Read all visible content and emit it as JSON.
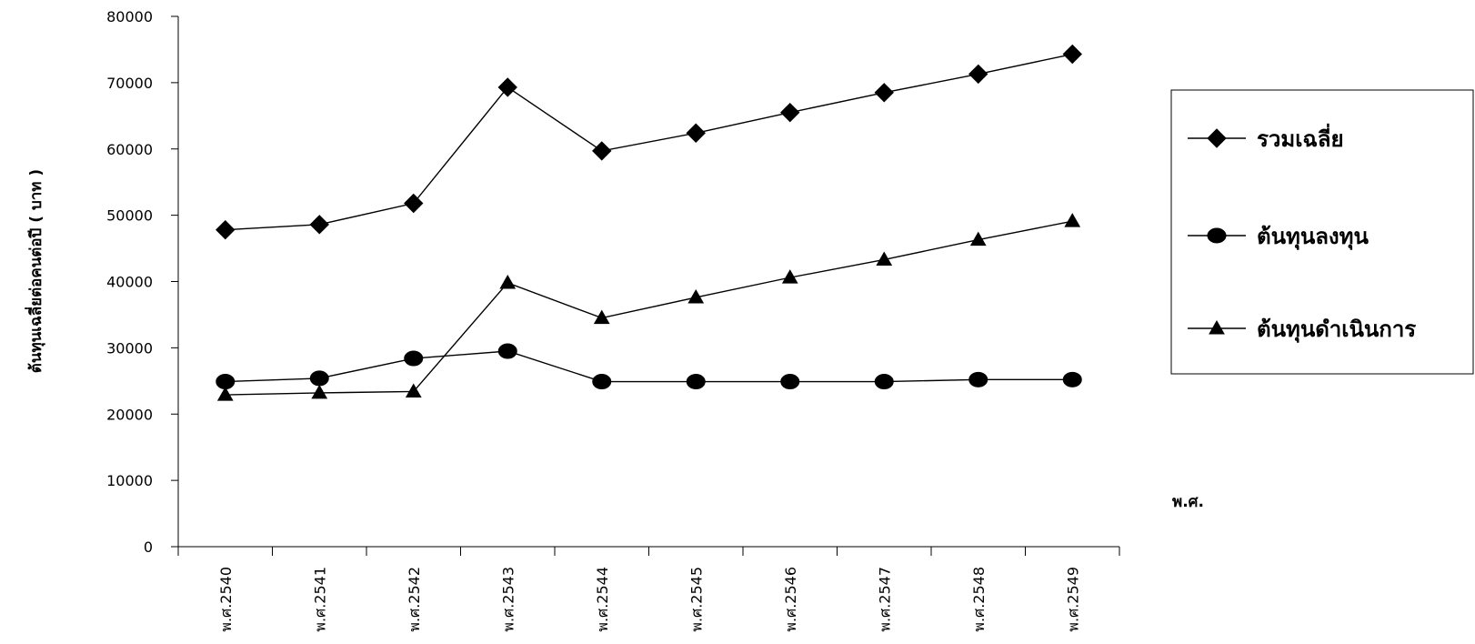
{
  "chart_data": {
    "type": "line",
    "title": "",
    "ylabel": "ต้นทุนเฉลี่ยต่อคนต่อปี ( บาท )",
    "xlabel": "พ.ศ.",
    "ylim": [
      0,
      80000
    ],
    "yticks": [
      0,
      10000,
      20000,
      30000,
      40000,
      50000,
      60000,
      70000,
      80000
    ],
    "grid": false,
    "legend_position": "right",
    "categories": [
      "พ.ศ.2540",
      "พ.ศ.2541",
      "พ.ศ.2542",
      "พ.ศ.2543",
      "พ.ศ.2544",
      "พ.ศ.2545",
      "พ.ศ.2546",
      "พ.ศ.2547",
      "พ.ศ.2548",
      "พ.ศ.2549"
    ],
    "series": [
      {
        "name": "รวมเฉลี่ย",
        "marker": "diamond",
        "values": [
          47800,
          48600,
          51800,
          69300,
          59700,
          62400,
          65500,
          68500,
          71300,
          74300
        ]
      },
      {
        "name": "ต้นทุนลงทุน",
        "marker": "circle",
        "values": [
          24900,
          25400,
          28400,
          29500,
          24900,
          24900,
          24900,
          24900,
          25200,
          25200
        ]
      },
      {
        "name": "ต้นทุนดำเนินการ",
        "marker": "triangle",
        "values": [
          22900,
          23200,
          23400,
          39800,
          34500,
          37600,
          40600,
          43300,
          46300,
          49100
        ]
      }
    ]
  }
}
